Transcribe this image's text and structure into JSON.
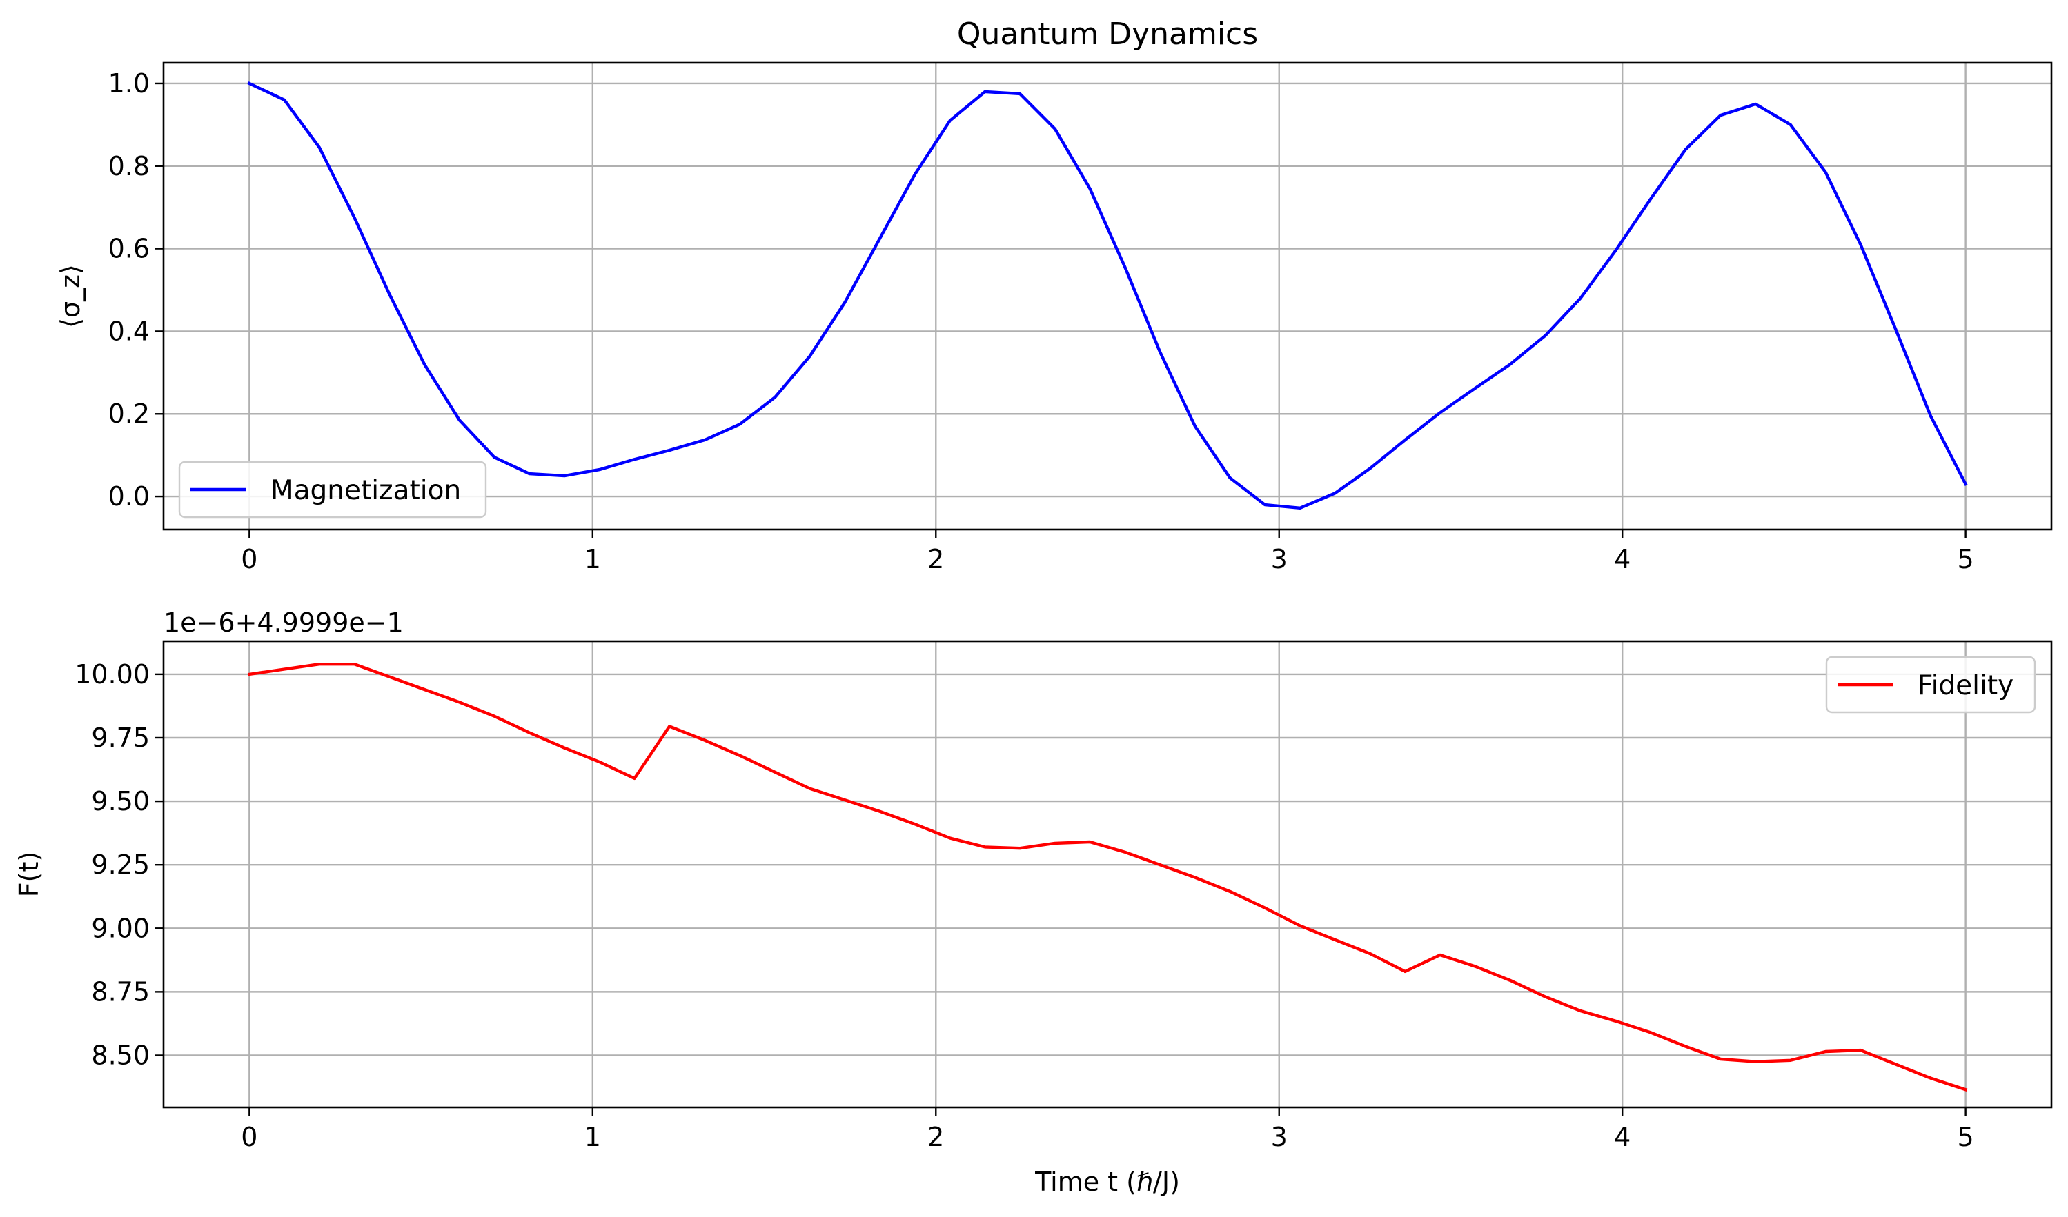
{
  "chart_data": [
    {
      "type": "line",
      "title": "Quantum Dynamics",
      "xlabel": "",
      "ylabel": "⟨σ_z⟩",
      "xlim": [
        -0.25,
        5.25
      ],
      "ylim": [
        -0.08,
        1.05
      ],
      "xticks": [
        0,
        1,
        2,
        3,
        4,
        5
      ],
      "xtick_labels": [
        "0",
        "1",
        "2",
        "3",
        "4",
        "5"
      ],
      "yticks": [
        0.0,
        0.2,
        0.4,
        0.6,
        0.8,
        1.0
      ],
      "ytick_labels": [
        "0.0",
        "0.2",
        "0.4",
        "0.6",
        "0.8",
        "1.0"
      ],
      "grid": true,
      "legend_position": "lower-left",
      "series": [
        {
          "name": "Magnetization",
          "color": "#0000ff",
          "x": [
            0.0,
            0.102,
            0.204,
            0.306,
            0.408,
            0.51,
            0.612,
            0.714,
            0.816,
            0.918,
            1.02,
            1.122,
            1.224,
            1.327,
            1.429,
            1.531,
            1.633,
            1.735,
            1.837,
            1.939,
            2.041,
            2.143,
            2.245,
            2.347,
            2.449,
            2.551,
            2.653,
            2.755,
            2.857,
            2.959,
            3.061,
            3.163,
            3.265,
            3.367,
            3.469,
            3.571,
            3.673,
            3.776,
            3.878,
            3.98,
            4.082,
            4.184,
            4.286,
            4.388,
            4.49,
            4.592,
            4.694,
            4.796,
            4.898,
            5.0
          ],
          "y": [
            1.0,
            0.96,
            0.845,
            0.675,
            0.49,
            0.32,
            0.185,
            0.095,
            0.055,
            0.05,
            0.065,
            0.09,
            0.112,
            0.137,
            0.175,
            0.24,
            0.34,
            0.47,
            0.625,
            0.78,
            0.91,
            0.98,
            0.975,
            0.89,
            0.745,
            0.555,
            0.35,
            0.17,
            0.045,
            -0.02,
            -0.028,
            0.008,
            0.068,
            0.137,
            0.203,
            0.262,
            0.32,
            0.39,
            0.48,
            0.595,
            0.72,
            0.84,
            0.923,
            0.95,
            0.9,
            0.785,
            0.61,
            0.405,
            0.195,
            0.03
          ]
        }
      ]
    },
    {
      "type": "line",
      "title": "",
      "xlabel": "Time t (ℏ/J)",
      "ylabel": "F(t)",
      "offset_text": "1e−6+4.9999e−1",
      "xlim": [
        -0.25,
        5.25
      ],
      "ylim": [
        8.295,
        10.13
      ],
      "xticks": [
        0,
        1,
        2,
        3,
        4,
        5
      ],
      "xtick_labels": [
        "0",
        "1",
        "2",
        "3",
        "4",
        "5"
      ],
      "yticks": [
        8.5,
        8.75,
        9.0,
        9.25,
        9.5,
        9.75,
        10.0
      ],
      "ytick_labels": [
        "8.50",
        "8.75",
        "9.00",
        "9.25",
        "9.50",
        "9.75",
        "10.00"
      ],
      "grid": true,
      "legend_position": "upper-right",
      "series": [
        {
          "name": "Fidelity",
          "color": "#ff0000",
          "x": [
            0.0,
            0.102,
            0.204,
            0.306,
            0.408,
            0.51,
            0.612,
            0.714,
            0.816,
            0.918,
            1.02,
            1.122,
            1.224,
            1.327,
            1.429,
            1.531,
            1.633,
            1.735,
            1.837,
            1.939,
            2.041,
            2.143,
            2.245,
            2.347,
            2.449,
            2.551,
            2.653,
            2.755,
            2.857,
            2.959,
            3.061,
            3.163,
            3.265,
            3.367,
            3.469,
            3.571,
            3.673,
            3.776,
            3.878,
            3.98,
            4.082,
            4.184,
            4.286,
            4.388,
            4.49,
            4.592,
            4.694,
            4.796,
            4.898,
            5.0
          ],
          "y": [
            10.0,
            10.02,
            10.04,
            10.04,
            9.99,
            9.94,
            9.89,
            9.835,
            9.77,
            9.71,
            9.655,
            9.59,
            9.795,
            9.74,
            9.68,
            9.615,
            9.55,
            9.505,
            9.46,
            9.41,
            9.355,
            9.32,
            9.315,
            9.335,
            9.34,
            9.3,
            9.25,
            9.2,
            9.145,
            9.08,
            9.01,
            8.955,
            8.9,
            8.83,
            8.895,
            8.85,
            8.795,
            8.73,
            8.675,
            8.635,
            8.59,
            8.535,
            8.485,
            8.475,
            8.48,
            8.515,
            8.52,
            8.465,
            8.41,
            8.365
          ]
        }
      ]
    }
  ]
}
